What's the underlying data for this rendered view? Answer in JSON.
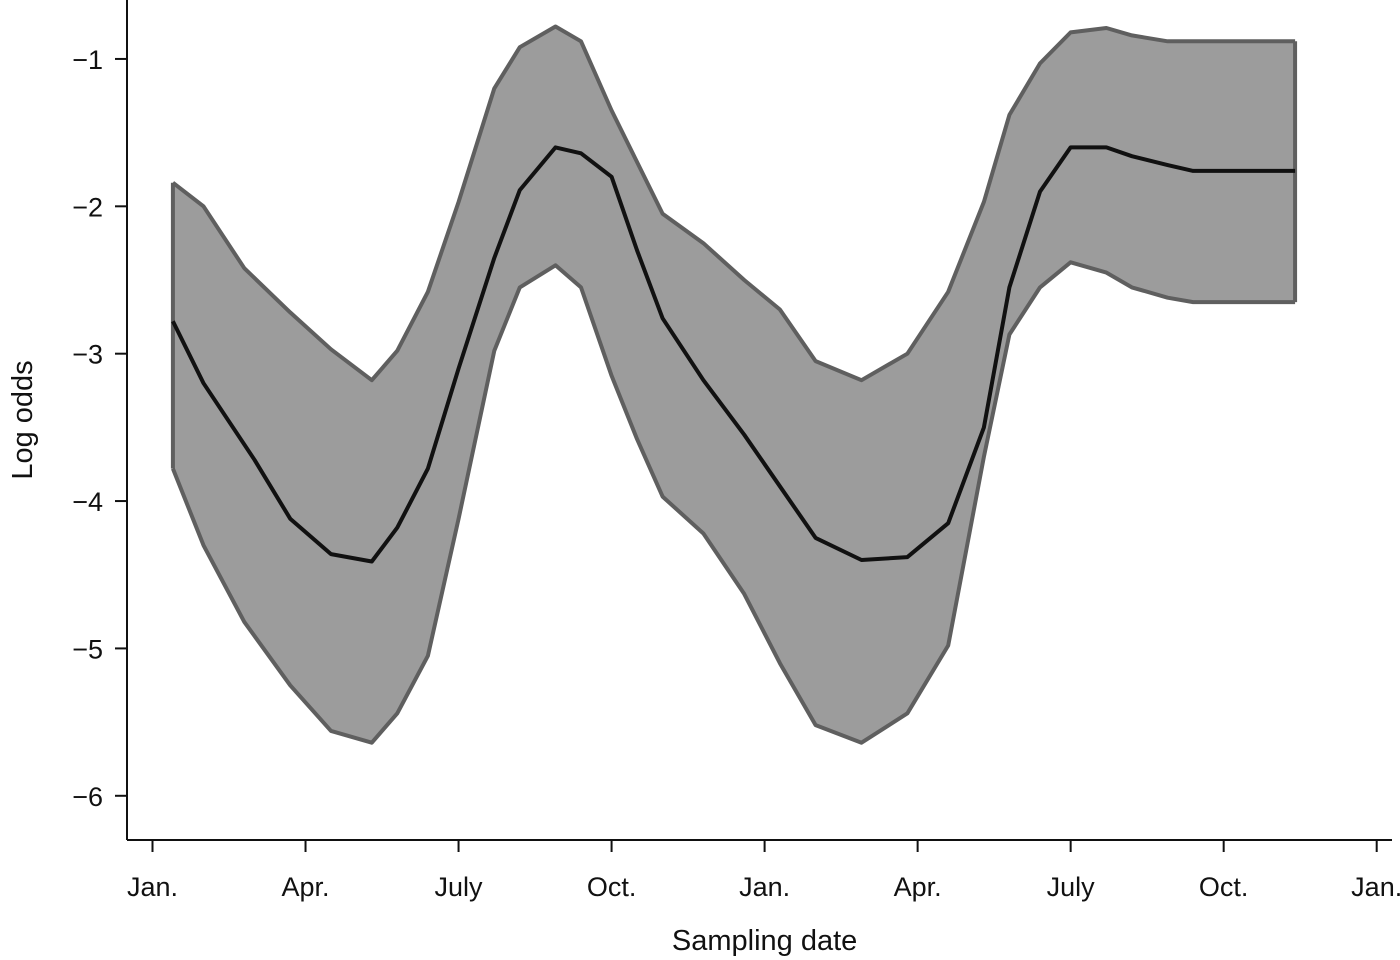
{
  "chart_data": {
    "type": "area",
    "xlabel": "Sampling date",
    "ylabel": "Log odds",
    "ylim": [
      -6.3,
      -0.6
    ],
    "xlim": [
      -0.5,
      24.3
    ],
    "grid": false,
    "yticks": [
      -1,
      -2,
      -3,
      -4,
      -5,
      -6
    ],
    "ytick_labels": [
      "−1",
      "−2",
      "−3",
      "−4",
      "−5",
      "−6"
    ],
    "xticks": [
      0,
      3,
      6,
      9,
      12,
      15,
      18,
      21,
      24
    ],
    "xtick_labels": [
      "Jan.",
      "Apr.",
      "July",
      "Oct.",
      "Jan.",
      "Apr.",
      "July",
      "Oct.",
      "Jan."
    ],
    "colors": {
      "band": "#9c9c9c",
      "band_edge": "#5f5f5f",
      "line": "#111111",
      "axis": "#111111"
    },
    "series": [
      {
        "role": "estimate",
        "x": [
          0.4,
          1.0,
          2.0,
          2.7,
          3.5,
          4.3,
          4.8,
          5.4,
          6.0,
          6.7,
          7.2,
          7.9,
          8.4,
          9.0,
          9.5,
          10.0,
          10.8,
          11.6,
          12.3,
          13.0,
          13.9,
          14.8,
          15.6,
          16.3,
          16.8,
          17.4,
          18.0,
          18.7,
          19.2,
          19.9,
          20.4,
          21.0,
          21.4,
          22.0,
          22.4
        ],
        "y": [
          -2.78,
          -3.2,
          -3.72,
          -4.12,
          -4.36,
          -4.41,
          -4.18,
          -3.78,
          -3.1,
          -2.35,
          -1.89,
          -1.6,
          -1.64,
          -1.8,
          -2.3,
          -2.76,
          -3.18,
          -3.55,
          -3.9,
          -4.25,
          -4.4,
          -4.38,
          -4.15,
          -3.5,
          -2.55,
          -1.9,
          -1.6,
          -1.6,
          -1.66,
          -1.72,
          -1.76,
          -1.76,
          -1.76,
          -1.76,
          -1.76
        ]
      },
      {
        "role": "upper",
        "x": [
          0.4,
          1.0,
          1.8,
          2.7,
          3.5,
          4.3,
          4.8,
          5.4,
          6.0,
          6.7,
          7.2,
          7.9,
          8.4,
          9.0,
          9.5,
          10.0,
          10.8,
          11.6,
          12.3,
          13.0,
          13.9,
          14.8,
          15.6,
          16.3,
          16.8,
          17.4,
          18.0,
          18.7,
          19.2,
          19.9,
          20.4,
          21.0,
          21.4,
          22.0,
          22.4
        ],
        "y": [
          -1.84,
          -2.0,
          -2.42,
          -2.72,
          -2.97,
          -3.18,
          -2.98,
          -2.58,
          -1.97,
          -1.2,
          -0.92,
          -0.78,
          -0.88,
          -1.35,
          -1.7,
          -2.05,
          -2.25,
          -2.5,
          -2.7,
          -3.05,
          -3.18,
          -3.0,
          -2.58,
          -1.97,
          -1.38,
          -1.03,
          -0.82,
          -0.79,
          -0.84,
          -0.88,
          -0.88,
          -0.88,
          -0.88,
          -0.88,
          -0.88
        ]
      },
      {
        "role": "lower",
        "x": [
          0.4,
          1.0,
          1.8,
          2.7,
          3.5,
          4.3,
          4.8,
          5.4,
          6.0,
          6.7,
          7.2,
          7.9,
          8.4,
          9.0,
          9.5,
          10.0,
          10.8,
          11.6,
          12.3,
          13.0,
          13.9,
          14.8,
          15.6,
          16.3,
          16.8,
          17.4,
          18.0,
          18.7,
          19.2,
          19.9,
          20.4,
          21.0,
          21.4,
          22.0,
          22.4
        ],
        "y": [
          -3.78,
          -4.3,
          -4.82,
          -5.25,
          -5.56,
          -5.64,
          -5.44,
          -5.05,
          -4.12,
          -2.98,
          -2.55,
          -2.4,
          -2.55,
          -3.15,
          -3.58,
          -3.97,
          -4.22,
          -4.63,
          -5.1,
          -5.52,
          -5.64,
          -5.44,
          -4.98,
          -3.7,
          -2.87,
          -2.55,
          -2.38,
          -2.45,
          -2.55,
          -2.62,
          -2.65,
          -2.65,
          -2.65,
          -2.65,
          -2.65
        ]
      }
    ]
  }
}
